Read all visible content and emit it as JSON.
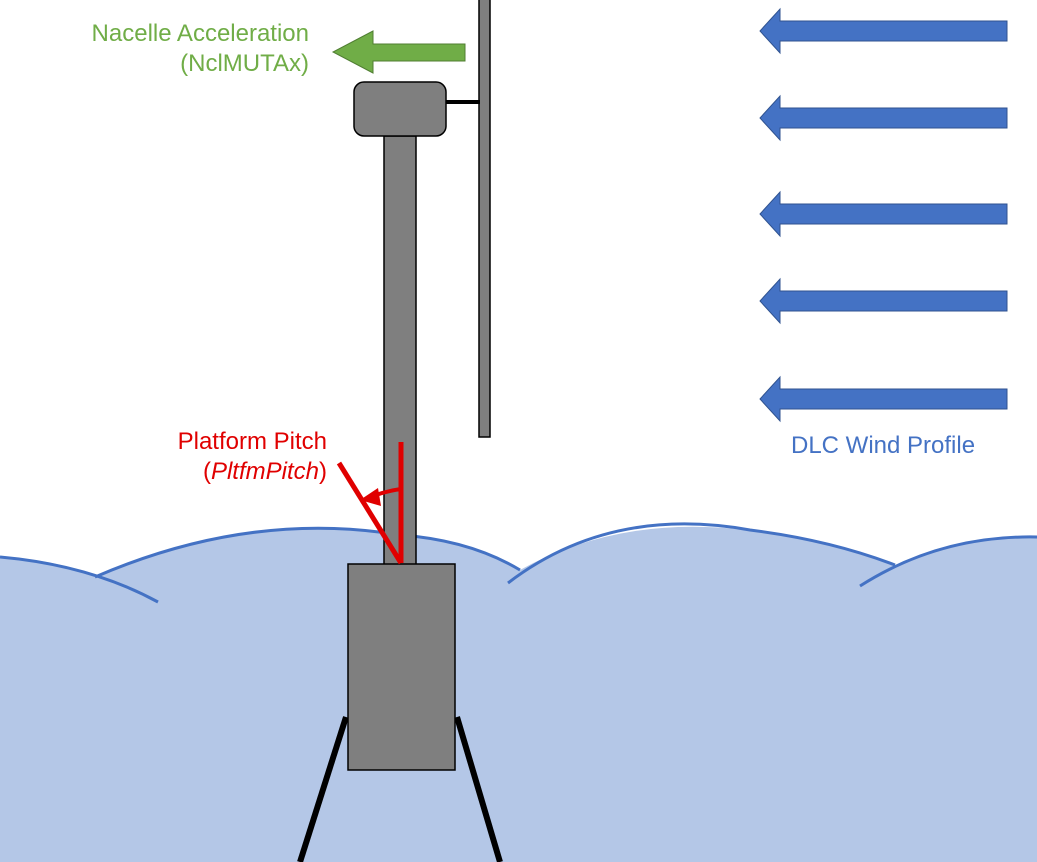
{
  "labels": {
    "nacelle_acceleration": "Nacelle Acceleration",
    "nacelle_acceleration_var": "(NclMUTAx)",
    "platform_pitch": "Platform Pitch",
    "platform_pitch_open": "(",
    "platform_pitch_var": "PltfmPitch",
    "platform_pitch_close": ")",
    "wind_profile": "DLC Wind Profile"
  },
  "colors": {
    "nacelle_arrow": "#70AD47",
    "pitch": "#E00000",
    "wind": "#4472C4",
    "water_fill": "#B4C7E7",
    "water_line": "#4472C4",
    "structure": "#7F7F7F",
    "outline": "#000000"
  }
}
